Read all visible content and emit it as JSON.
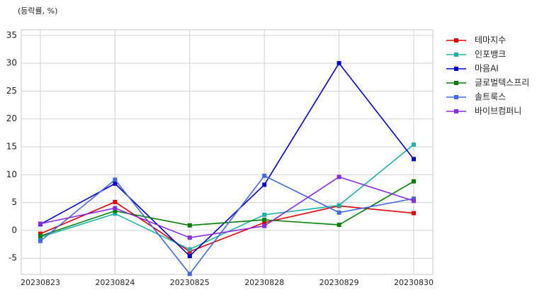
{
  "chart_data": {
    "type": "line",
    "title": "(등락률, %)",
    "categories": [
      "20230823",
      "20230824",
      "20230825",
      "20230828",
      "20230829",
      "20230830"
    ],
    "series": [
      {
        "name": "테마지수",
        "color": "#e00000",
        "values": [
          -0.6,
          5.1,
          -3.8,
          1.4,
          4.4,
          3.1
        ]
      },
      {
        "name": "인포뱅크",
        "color": "#20b2aa",
        "values": [
          -1.2,
          3.0,
          -3.4,
          2.8,
          4.5,
          15.4
        ]
      },
      {
        "name": "마음AI",
        "color": "#0000cd",
        "values": [
          1.1,
          8.4,
          -4.6,
          8.2,
          30.0,
          12.8
        ]
      },
      {
        "name": "글로벌텍스프리",
        "color": "#008000",
        "values": [
          -1.0,
          3.5,
          0.9,
          1.9,
          1.0,
          8.8
        ]
      },
      {
        "name": "솔트룩스",
        "color": "#4169e1",
        "values": [
          -1.9,
          9.1,
          -7.8,
          9.8,
          3.2,
          5.7
        ]
      },
      {
        "name": "바이브컴퍼니",
        "color": "#8a2be2",
        "values": [
          1.2,
          4.0,
          -1.3,
          0.8,
          9.6,
          5.3
        ]
      }
    ],
    "ylim": [
      -7.9,
      36
    ],
    "yticks": [
      -5,
      0,
      5,
      10,
      15,
      20,
      25,
      30,
      35
    ],
    "grid": true,
    "legend": "right"
  }
}
